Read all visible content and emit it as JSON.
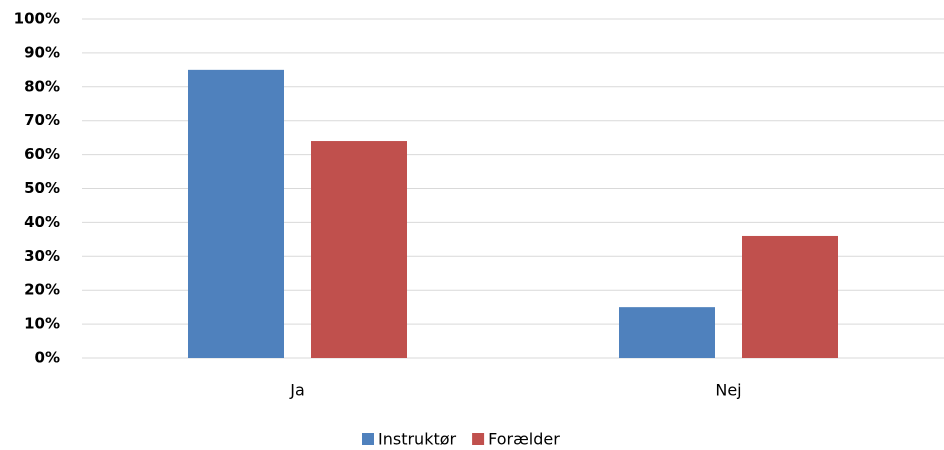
{
  "chart_data": {
    "type": "bar",
    "categories": [
      "Ja",
      "Nej"
    ],
    "series": [
      {
        "name": "Instruktør",
        "color": "#4f81bd",
        "values": [
          85,
          15
        ]
      },
      {
        "name": "Forælder",
        "color": "#c0504d",
        "values": [
          64,
          36
        ]
      }
    ],
    "ylim": [
      0,
      100
    ],
    "yticks": [
      {
        "value": 0,
        "label": "0%"
      },
      {
        "value": 10,
        "label": "10%"
      },
      {
        "value": 20,
        "label": "20%"
      },
      {
        "value": 30,
        "label": "30%"
      },
      {
        "value": 40,
        "label": "40%"
      },
      {
        "value": 50,
        "label": "50%"
      },
      {
        "value": 60,
        "label": "60%"
      },
      {
        "value": 70,
        "label": "70%"
      },
      {
        "value": 80,
        "label": "80%"
      },
      {
        "value": 90,
        "label": "90%"
      },
      {
        "value": 100,
        "label": "100%"
      }
    ],
    "grid": true,
    "legend": "bottom"
  }
}
